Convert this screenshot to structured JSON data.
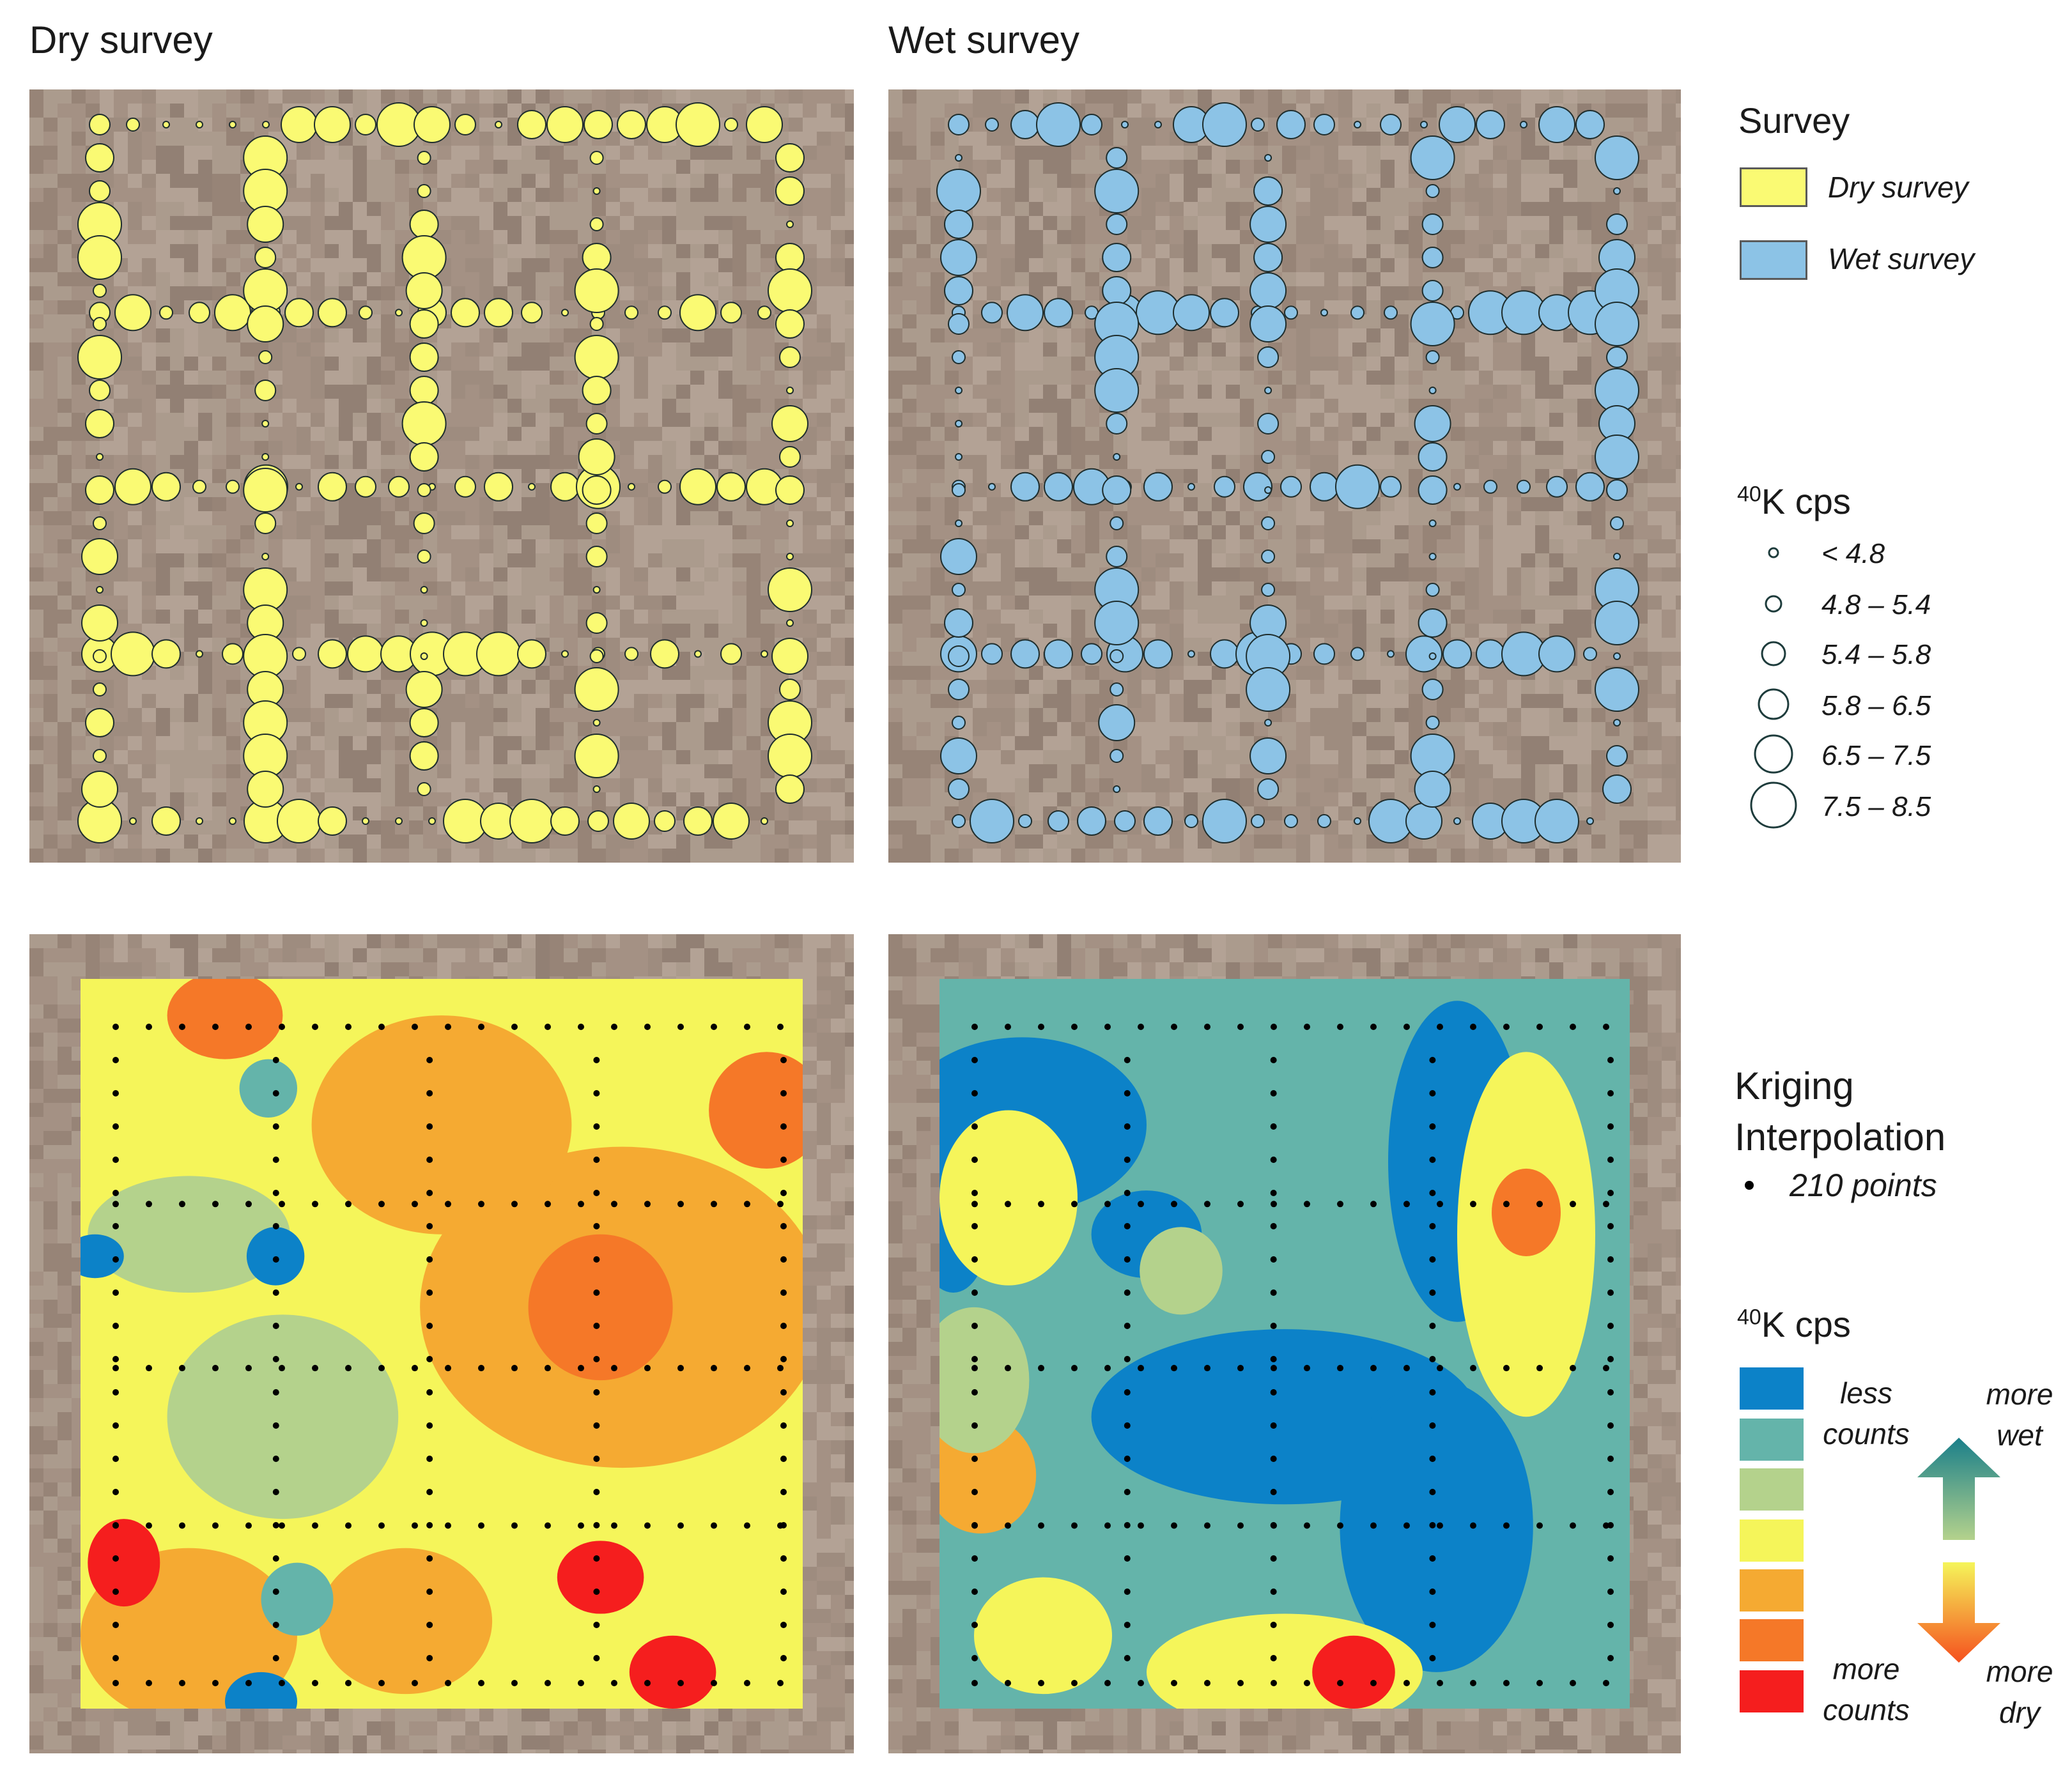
{
  "panels": {
    "dry_title": "Dry survey",
    "wet_title": "Wet survey"
  },
  "colors": {
    "dry_fill": "#fafa73",
    "wet_fill": "#8cc3e6",
    "soil": "#a08e82",
    "k_scale": [
      "#0c82c8",
      "#64b4aa",
      "#b4d28c",
      "#f5f55a",
      "#f5aa32",
      "#f57828",
      "#f51e1e"
    ]
  },
  "legend_survey": {
    "title": "Survey",
    "items": [
      {
        "label": "Dry survey",
        "color": "#fafa73"
      },
      {
        "label": "Wet survey",
        "color": "#8cc3e6"
      }
    ]
  },
  "legend_sizes": {
    "title_sup": "40",
    "title_rest": "K cps",
    "classes": [
      "< 4.8",
      "4.8 – 5.4",
      "5.4 – 5.8",
      "5.8 – 6.5",
      "6.5 – 7.5",
      "7.5 – 8.5"
    ]
  },
  "legend_kriging": {
    "title_line1": "Kriging",
    "title_line2": "Interpolation",
    "points_label": "210 points"
  },
  "legend_color": {
    "title_sup": "40",
    "title_rest": "K cps",
    "less_label_1": "less",
    "less_label_2": "counts",
    "more_label_1": "more",
    "more_label_2": "counts",
    "wet_label_1": "more",
    "wet_label_2": "wet",
    "dry_label_1": "more",
    "dry_label_2": "dry"
  }
}
